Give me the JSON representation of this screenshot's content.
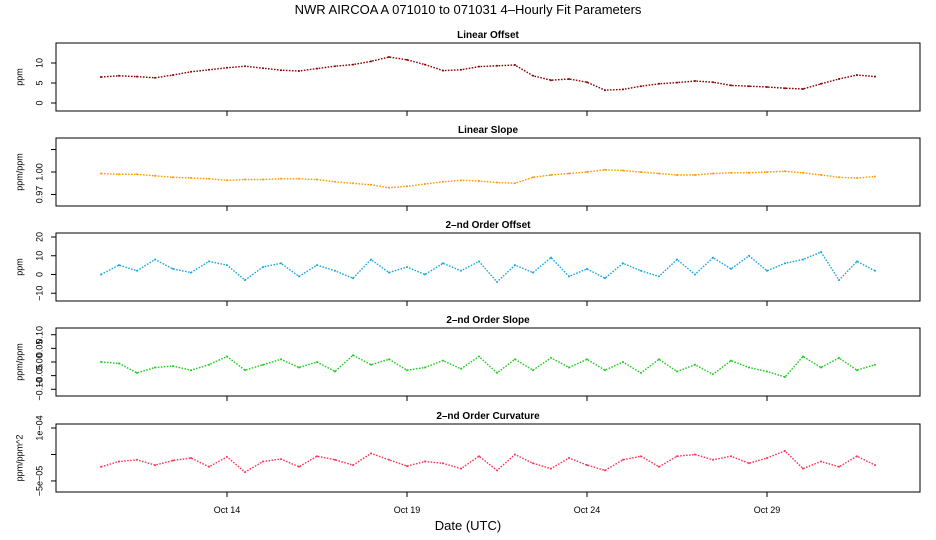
{
  "title": "NWR   AIRCOA A   071010 to 071031   4–Hourly Fit Parameters",
  "xlabel": "Date (UTC)",
  "x_ticks": [
    "Oct 14",
    "Oct 19",
    "Oct 24",
    "Oct 29"
  ],
  "chart_data": [
    {
      "type": "line",
      "title": "Linear Offset",
      "ylabel": "ppm",
      "yticks": [
        "0",
        "5",
        "10"
      ],
      "ylim": [
        -1,
        14
      ],
      "color": "#8b0000",
      "x": [
        "Oct 10 12:00",
        "Oct 11 00:00",
        "Oct 11 12:00",
        "Oct 12 00:00",
        "Oct 12 12:00",
        "Oct 13 00:00",
        "Oct 13 12:00",
        "Oct 14 00:00",
        "Oct 14 12:00",
        "Oct 15 00:00",
        "Oct 15 12:00",
        "Oct 16 00:00",
        "Oct 16 12:00",
        "Oct 17 00:00",
        "Oct 17 12:00",
        "Oct 18 00:00",
        "Oct 18 12:00",
        "Oct 19 00:00",
        "Oct 19 12:00",
        "Oct 20 00:00",
        "Oct 20 12:00",
        "Oct 21 00:00",
        "Oct 21 12:00",
        "Oct 22 00:00",
        "Oct 22 12:00",
        "Oct 23 00:00",
        "Oct 23 12:00",
        "Oct 24 00:00",
        "Oct 24 12:00",
        "Oct 25 00:00",
        "Oct 25 12:00",
        "Oct 26 00:00",
        "Oct 26 12:00",
        "Oct 27 00:00",
        "Oct 27 12:00",
        "Oct 28 00:00",
        "Oct 28 12:00",
        "Oct 29 00:00",
        "Oct 29 12:00",
        "Oct 30 00:00",
        "Oct 30 12:00",
        "Oct 31 00:00",
        "Oct 31 12:00",
        "Nov 01 00:00"
      ],
      "values": [
        6.5,
        6.8,
        6.6,
        6.3,
        7.0,
        7.8,
        8.3,
        8.8,
        9.2,
        8.7,
        8.2,
        8.0,
        8.6,
        9.2,
        9.6,
        10.4,
        11.5,
        10.8,
        9.6,
        8.1,
        8.3,
        9.1,
        9.3,
        9.5,
        6.8,
        5.7,
        6.0,
        5.2,
        3.2,
        3.4,
        4.2,
        4.8,
        5.1,
        5.5,
        5.2,
        4.4,
        4.2,
        4.0,
        3.7,
        3.5,
        4.8,
        6.0,
        7.0,
        6.6
      ]
    },
    {
      "type": "line",
      "title": "Linear Slope",
      "ylabel": "ppm/ppm",
      "yticks": [
        "0.97",
        "1.00",
        ""
      ],
      "ylim": [
        0.96,
        1.04
      ],
      "color": "#ff9900",
      "x": [
        "Oct 10 12:00",
        "Oct 11 00:00",
        "Oct 11 12:00",
        "Oct 12 00:00",
        "Oct 12 12:00",
        "Oct 13 00:00",
        "Oct 13 12:00",
        "Oct 14 00:00",
        "Oct 14 12:00",
        "Oct 15 00:00",
        "Oct 15 12:00",
        "Oct 16 00:00",
        "Oct 16 12:00",
        "Oct 17 00:00",
        "Oct 17 12:00",
        "Oct 18 00:00",
        "Oct 18 12:00",
        "Oct 19 00:00",
        "Oct 19 12:00",
        "Oct 20 00:00",
        "Oct 20 12:00",
        "Oct 21 00:00",
        "Oct 21 12:00",
        "Oct 22 00:00",
        "Oct 22 12:00",
        "Oct 23 00:00",
        "Oct 23 12:00",
        "Oct 24 00:00",
        "Oct 24 12:00",
        "Oct 25 00:00",
        "Oct 25 12:00",
        "Oct 26 00:00",
        "Oct 26 12:00",
        "Oct 27 00:00",
        "Oct 27 12:00",
        "Oct 28 00:00",
        "Oct 28 12:00",
        "Oct 29 00:00",
        "Oct 29 12:00",
        "Oct 30 00:00",
        "Oct 30 12:00",
        "Oct 31 00:00",
        "Oct 31 12:00",
        "Nov 01 00:00"
      ],
      "values": [
        0.998,
        0.997,
        0.997,
        0.995,
        0.993,
        0.992,
        0.991,
        0.989,
        0.99,
        0.99,
        0.991,
        0.991,
        0.99,
        0.987,
        0.985,
        0.983,
        0.979,
        0.981,
        0.984,
        0.987,
        0.989,
        0.988,
        0.986,
        0.985,
        0.993,
        0.996,
        0.998,
        1.0,
        1.003,
        1.002,
        1.0,
        0.998,
        0.996,
        0.996,
        0.998,
        0.999,
        0.999,
        1.0,
        1.001,
        0.999,
        0.996,
        0.993,
        0.992,
        0.994
      ]
    },
    {
      "type": "line",
      "title": "2–nd Order Offset",
      "ylabel": "ppm",
      "yticks": [
        "−10",
        "0",
        "10",
        "20"
      ],
      "ylim": [
        -12,
        20
      ],
      "color": "#1aa7e0",
      "x": [
        "Oct 10 12:00",
        "Oct 11 00:00",
        "Oct 11 12:00",
        "Oct 12 00:00",
        "Oct 12 12:00",
        "Oct 13 00:00",
        "Oct 13 12:00",
        "Oct 14 00:00",
        "Oct 14 12:00",
        "Oct 15 00:00",
        "Oct 15 12:00",
        "Oct 16 00:00",
        "Oct 16 12:00",
        "Oct 17 00:00",
        "Oct 17 12:00",
        "Oct 18 00:00",
        "Oct 18 12:00",
        "Oct 19 00:00",
        "Oct 19 12:00",
        "Oct 20 00:00",
        "Oct 20 12:00",
        "Oct 21 00:00",
        "Oct 21 12:00",
        "Oct 22 00:00",
        "Oct 22 12:00",
        "Oct 23 00:00",
        "Oct 23 12:00",
        "Oct 24 00:00",
        "Oct 24 12:00",
        "Oct 25 00:00",
        "Oct 25 12:00",
        "Oct 26 00:00",
        "Oct 26 12:00",
        "Oct 27 00:00",
        "Oct 27 12:00",
        "Oct 28 00:00",
        "Oct 28 12:00",
        "Oct 29 00:00",
        "Oct 29 12:00",
        "Oct 30 00:00",
        "Oct 30 12:00",
        "Oct 31 00:00",
        "Oct 31 12:00",
        "Nov 01 00:00"
      ],
      "values": [
        0,
        5,
        2,
        8,
        3,
        1,
        7,
        5,
        -3,
        4,
        6,
        -1,
        5,
        2,
        -2,
        8,
        1,
        4,
        0,
        6,
        2,
        7,
        -4,
        5,
        1,
        9,
        -1,
        3,
        -2,
        6,
        2,
        -1,
        8,
        0,
        9,
        3,
        10,
        2,
        6,
        8,
        12,
        -3,
        7,
        2
      ]
    },
    {
      "type": "line",
      "title": "2–nd Order Slope",
      "ylabel": "ppm/ppm",
      "yticks": [
        "−0.10",
        "−0.05",
        "0.00",
        "0.05",
        "0.10"
      ],
      "ylim": [
        -0.11,
        0.11
      ],
      "color": "#22cc22",
      "x": [
        "Oct 10 12:00",
        "Oct 11 00:00",
        "Oct 11 12:00",
        "Oct 12 00:00",
        "Oct 12 12:00",
        "Oct 13 00:00",
        "Oct 13 12:00",
        "Oct 14 00:00",
        "Oct 14 12:00",
        "Oct 15 00:00",
        "Oct 15 12:00",
        "Oct 16 00:00",
        "Oct 16 12:00",
        "Oct 17 00:00",
        "Oct 17 12:00",
        "Oct 18 00:00",
        "Oct 18 12:00",
        "Oct 19 00:00",
        "Oct 19 12:00",
        "Oct 20 00:00",
        "Oct 20 12:00",
        "Oct 21 00:00",
        "Oct 21 12:00",
        "Oct 22 00:00",
        "Oct 22 12:00",
        "Oct 23 00:00",
        "Oct 23 12:00",
        "Oct 24 00:00",
        "Oct 24 12:00",
        "Oct 25 00:00",
        "Oct 25 12:00",
        "Oct 26 00:00",
        "Oct 26 12:00",
        "Oct 27 00:00",
        "Oct 27 12:00",
        "Oct 28 00:00",
        "Oct 28 12:00",
        "Oct 29 00:00",
        "Oct 29 12:00",
        "Oct 30 00:00",
        "Oct 30 12:00",
        "Oct 31 00:00",
        "Oct 31 12:00",
        "Nov 01 00:00"
      ],
      "values": [
        0.0,
        -0.005,
        -0.04,
        -0.02,
        -0.015,
        -0.03,
        -0.01,
        0.02,
        -0.03,
        -0.01,
        0.01,
        -0.02,
        0.0,
        -0.035,
        0.025,
        -0.01,
        0.01,
        -0.03,
        -0.02,
        0.005,
        -0.025,
        0.02,
        -0.04,
        0.01,
        -0.03,
        0.015,
        -0.02,
        0.01,
        -0.03,
        0.0,
        -0.04,
        0.01,
        -0.035,
        -0.01,
        -0.045,
        0.005,
        -0.02,
        -0.035,
        -0.055,
        0.02,
        -0.02,
        0.015,
        -0.03,
        -0.01
      ]
    },
    {
      "type": "line",
      "title": "2–nd Order Curvature",
      "ylabel": "ppm/ppm^2",
      "yticks": [
        "−5e−05",
        "",
        "1e−04"
      ],
      "ylim": [
        -7e-05,
        0.0001
      ],
      "color": "#ff3355",
      "x": [
        "Oct 10 12:00",
        "Oct 11 00:00",
        "Oct 11 12:00",
        "Oct 12 00:00",
        "Oct 12 12:00",
        "Oct 13 00:00",
        "Oct 13 12:00",
        "Oct 14 00:00",
        "Oct 14 12:00",
        "Oct 15 00:00",
        "Oct 15 12:00",
        "Oct 16 00:00",
        "Oct 16 12:00",
        "Oct 17 00:00",
        "Oct 17 12:00",
        "Oct 18 00:00",
        "Oct 18 12:00",
        "Oct 19 00:00",
        "Oct 19 12:00",
        "Oct 20 00:00",
        "Oct 20 12:00",
        "Oct 21 00:00",
        "Oct 21 12:00",
        "Oct 22 00:00",
        "Oct 22 12:00",
        "Oct 23 00:00",
        "Oct 23 12:00",
        "Oct 24 00:00",
        "Oct 24 12:00",
        "Oct 25 00:00",
        "Oct 25 12:00",
        "Oct 26 00:00",
        "Oct 26 12:00",
        "Oct 27 00:00",
        "Oct 27 12:00",
        "Oct 28 00:00",
        "Oct 28 12:00",
        "Oct 29 00:00",
        "Oct 29 12:00",
        "Oct 30 00:00",
        "Oct 30 12:00",
        "Oct 31 00:00",
        "Oct 31 12:00",
        "Nov 01 00:00"
      ],
      "values": [
        -1e-05,
        5e-06,
        1e-05,
        -5e-06,
        8e-06,
        1.5e-05,
        -1e-05,
        1.8e-05,
        -2.5e-05,
        5e-06,
        1.2e-05,
        -1e-05,
        2e-05,
        1e-05,
        -5e-06,
        2.8e-05,
        1e-05,
        -8e-06,
        5e-06,
        0.0,
        -1.5e-05,
        2e-05,
        -2e-05,
        2.5e-05,
        0.0,
        -1.5e-05,
        1.5e-05,
        -5e-06,
        -2e-05,
        1e-05,
        2e-05,
        -1e-05,
        2e-05,
        2.5e-05,
        1e-05,
        2e-05,
        0.0,
        1.5e-05,
        3.5e-05,
        -1.5e-05,
        5e-06,
        -1e-05,
        2e-05,
        -5e-06
      ]
    }
  ]
}
